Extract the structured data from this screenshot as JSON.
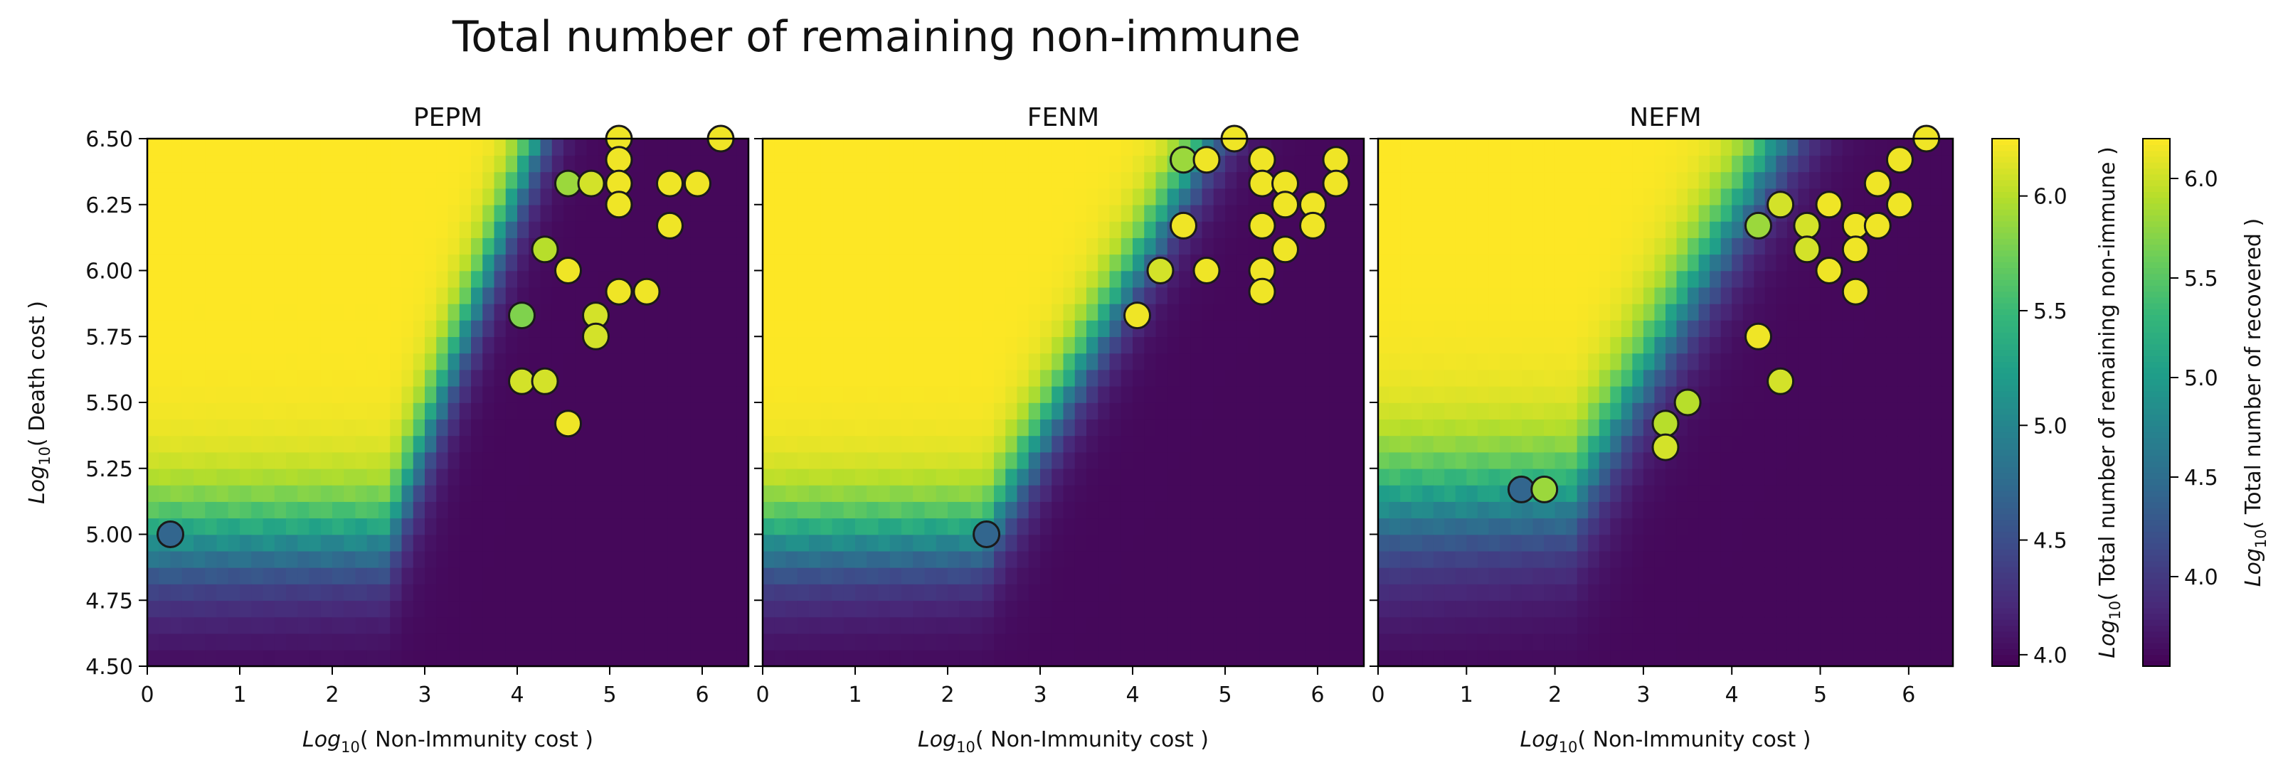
{
  "figure": {
    "title": "Total number of remaining non-immune"
  },
  "chart_data": [
    {
      "type": "heatmap",
      "title": "PEPM",
      "xlabel_sub": "Log",
      "xlabel_base": "10",
      "xlabel_rest": "( Non-Immunity cost )",
      "ylabel_sub": "Log",
      "ylabel_base": "10",
      "ylabel_rest": "( Death cost )",
      "xlim": [
        0,
        6.5
      ],
      "ylim": [
        4.5,
        6.5
      ],
      "xticks": [
        0,
        1,
        2,
        3,
        4,
        5,
        6
      ],
      "yticks": [
        4.5,
        4.75,
        5.0,
        5.25,
        5.5,
        5.75,
        6.0,
        6.25,
        6.5
      ],
      "ytick_labels": [
        "4.50",
        "4.75",
        "5.00",
        "5.25",
        "5.50",
        "5.75",
        "6.00",
        "6.25",
        "6.50"
      ],
      "boundary": {
        "low_y": 5.0,
        "knee_x": 2.6,
        "slope": 0.93,
        "width": 0.5
      },
      "points": [
        {
          "x": 0.25,
          "y": 5.0,
          "v": 4.7
        },
        {
          "x": 4.05,
          "y": 5.83,
          "v": 5.8
        },
        {
          "x": 4.05,
          "y": 5.58,
          "v": 6.1
        },
        {
          "x": 4.3,
          "y": 5.58,
          "v": 6.1
        },
        {
          "x": 4.3,
          "y": 6.08,
          "v": 6.0
        },
        {
          "x": 4.55,
          "y": 5.42,
          "v": 6.2
        },
        {
          "x": 4.55,
          "y": 6.0,
          "v": 6.2
        },
        {
          "x": 4.55,
          "y": 6.33,
          "v": 5.9
        },
        {
          "x": 4.8,
          "y": 6.33,
          "v": 6.1
        },
        {
          "x": 4.85,
          "y": 5.83,
          "v": 6.1
        },
        {
          "x": 4.85,
          "y": 5.75,
          "v": 6.1
        },
        {
          "x": 5.1,
          "y": 6.5,
          "v": 6.2
        },
        {
          "x": 5.1,
          "y": 6.42,
          "v": 6.2
        },
        {
          "x": 5.1,
          "y": 6.33,
          "v": 6.2
        },
        {
          "x": 5.1,
          "y": 6.25,
          "v": 6.2
        },
        {
          "x": 5.1,
          "y": 5.92,
          "v": 6.2
        },
        {
          "x": 5.4,
          "y": 5.92,
          "v": 6.2
        },
        {
          "x": 5.65,
          "y": 6.33,
          "v": 6.2
        },
        {
          "x": 5.65,
          "y": 6.17,
          "v": 6.2
        },
        {
          "x": 5.95,
          "y": 6.33,
          "v": 6.2
        },
        {
          "x": 6.2,
          "y": 6.5,
          "v": 6.2
        }
      ]
    },
    {
      "type": "heatmap",
      "title": "FENM",
      "xlabel_sub": "Log",
      "xlabel_base": "10",
      "xlabel_rest": "( Non-Immunity cost )",
      "xlim": [
        0,
        6.5
      ],
      "ylim": [
        4.5,
        6.5
      ],
      "xticks": [
        0,
        1,
        2,
        3,
        4,
        5,
        6
      ],
      "yticks": [
        4.5,
        4.75,
        5.0,
        5.25,
        5.5,
        5.75,
        6.0,
        6.25,
        6.5
      ],
      "boundary": {
        "low_y": 5.0,
        "knee_x": 2.4,
        "slope": 0.62,
        "width": 0.45
      },
      "points": [
        {
          "x": 2.42,
          "y": 5.0,
          "v": 4.7
        },
        {
          "x": 4.05,
          "y": 5.83,
          "v": 6.2
        },
        {
          "x": 4.3,
          "y": 6.0,
          "v": 6.1
        },
        {
          "x": 4.55,
          "y": 6.42,
          "v": 5.9
        },
        {
          "x": 4.55,
          "y": 6.17,
          "v": 6.2
        },
        {
          "x": 4.8,
          "y": 6.42,
          "v": 6.2
        },
        {
          "x": 4.8,
          "y": 6.0,
          "v": 6.2
        },
        {
          "x": 5.1,
          "y": 6.5,
          "v": 6.2
        },
        {
          "x": 5.4,
          "y": 6.42,
          "v": 6.2
        },
        {
          "x": 5.4,
          "y": 6.33,
          "v": 6.2
        },
        {
          "x": 5.4,
          "y": 6.17,
          "v": 6.2
        },
        {
          "x": 5.4,
          "y": 6.0,
          "v": 6.2
        },
        {
          "x": 5.4,
          "y": 5.92,
          "v": 6.2
        },
        {
          "x": 5.65,
          "y": 6.33,
          "v": 6.2
        },
        {
          "x": 5.65,
          "y": 6.25,
          "v": 6.2
        },
        {
          "x": 5.65,
          "y": 6.08,
          "v": 6.2
        },
        {
          "x": 5.95,
          "y": 6.25,
          "v": 6.2
        },
        {
          "x": 5.95,
          "y": 6.17,
          "v": 6.2
        },
        {
          "x": 6.2,
          "y": 6.42,
          "v": 6.2
        },
        {
          "x": 6.2,
          "y": 6.33,
          "v": 6.2
        }
      ]
    },
    {
      "type": "heatmap",
      "title": "NEFM",
      "xlabel_sub": "Log",
      "xlabel_base": "10",
      "xlabel_rest": "( Non-Immunity cost )",
      "xlim": [
        0,
        6.5
      ],
      "ylim": [
        4.5,
        6.5
      ],
      "xticks": [
        0,
        1,
        2,
        3,
        4,
        5,
        6
      ],
      "yticks": [
        4.5,
        4.75,
        5.0,
        5.25,
        5.5,
        5.75,
        6.0,
        6.25,
        6.5
      ],
      "boundary": {
        "low_y": 5.15,
        "knee_x": 2.2,
        "slope": 0.58,
        "width": 0.55
      },
      "points": [
        {
          "x": 1.62,
          "y": 5.17,
          "v": 4.7
        },
        {
          "x": 1.88,
          "y": 5.17,
          "v": 5.9
        },
        {
          "x": 3.25,
          "y": 5.42,
          "v": 6.0
        },
        {
          "x": 3.25,
          "y": 5.33,
          "v": 6.1
        },
        {
          "x": 3.5,
          "y": 5.5,
          "v": 6.0
        },
        {
          "x": 4.3,
          "y": 6.17,
          "v": 5.9
        },
        {
          "x": 4.3,
          "y": 5.75,
          "v": 6.2
        },
        {
          "x": 4.55,
          "y": 6.25,
          "v": 6.1
        },
        {
          "x": 4.55,
          "y": 5.58,
          "v": 6.1
        },
        {
          "x": 4.85,
          "y": 6.17,
          "v": 6.1
        },
        {
          "x": 4.85,
          "y": 6.08,
          "v": 6.1
        },
        {
          "x": 5.1,
          "y": 6.25,
          "v": 6.2
        },
        {
          "x": 5.1,
          "y": 6.0,
          "v": 6.2
        },
        {
          "x": 5.4,
          "y": 6.17,
          "v": 6.2
        },
        {
          "x": 5.4,
          "y": 6.08,
          "v": 6.2
        },
        {
          "x": 5.4,
          "y": 5.92,
          "v": 6.2
        },
        {
          "x": 5.65,
          "y": 6.33,
          "v": 6.2
        },
        {
          "x": 5.65,
          "y": 6.17,
          "v": 6.2
        },
        {
          "x": 5.9,
          "y": 6.42,
          "v": 6.2
        },
        {
          "x": 5.9,
          "y": 6.25,
          "v": 6.2
        },
        {
          "x": 6.2,
          "y": 6.5,
          "v": 6.2
        }
      ]
    }
  ],
  "colorbars": [
    {
      "label_sub": "Log",
      "label_base": "10",
      "label_rest": "( Total number of remaining non-immune )",
      "range": [
        3.95,
        6.25
      ],
      "ticks": [
        4.0,
        4.5,
        5.0,
        5.5,
        6.0
      ],
      "tick_labels": [
        "4.0",
        "4.5",
        "5.0",
        "5.5",
        "6.0"
      ]
    },
    {
      "label_sub": "Log",
      "label_base": "10",
      "label_rest": "( Total number of recovered )",
      "range": [
        3.55,
        6.2
      ],
      "ticks": [
        4.0,
        4.5,
        5.0,
        5.5,
        6.0
      ],
      "tick_labels": [
        "4.0",
        "4.5",
        "5.0",
        "5.5",
        "6.0"
      ]
    }
  ],
  "colormap": {
    "name": "viridis",
    "stops": [
      "#440154",
      "#482878",
      "#3e4989",
      "#31688e",
      "#26828e",
      "#1f9e89",
      "#35b779",
      "#6ece58",
      "#b5de2b",
      "#fde725"
    ]
  }
}
